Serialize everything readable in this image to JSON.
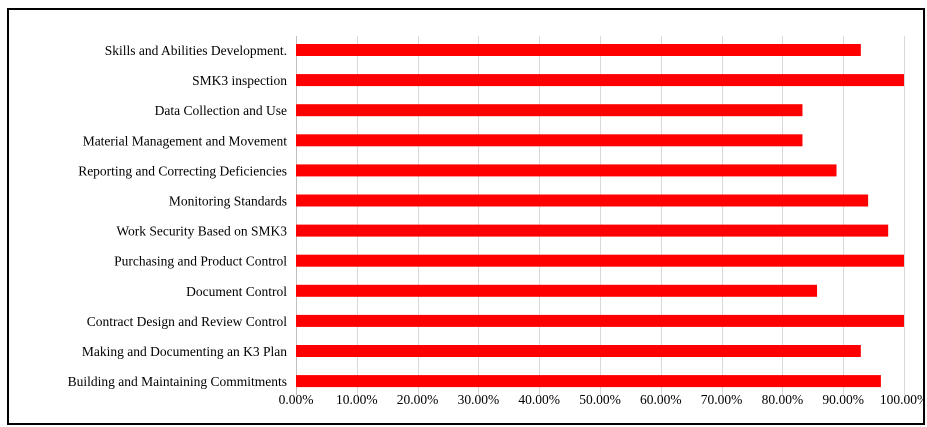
{
  "chart_data": {
    "type": "bar",
    "orientation": "horizontal",
    "categories": [
      "Skills and Abilities Development.",
      "SMK3 inspection",
      "Data Collection and Use",
      "Material Management and Movement",
      "Reporting and Correcting Deficiencies",
      "Monitoring Standards",
      "Work Security Based on SMK3",
      "Purchasing and Product Control",
      "Document Control",
      "Contract Design and Review Control",
      "Making and Documenting an K3 Plan",
      "Building and Maintaining Commitments"
    ],
    "values": [
      0.929,
      1.0,
      0.833,
      0.833,
      0.889,
      0.941,
      0.974,
      1.0,
      0.857,
      1.0,
      0.929,
      0.962
    ],
    "xlim": [
      0,
      1
    ],
    "x_ticks": [
      0,
      0.1,
      0.2,
      0.3,
      0.4,
      0.5,
      0.6,
      0.7,
      0.8,
      0.9,
      1.0
    ],
    "x_tick_labels": [
      "0.00%",
      "10.00%",
      "20.00%",
      "30.00%",
      "40.00%",
      "50.00%",
      "60.00%",
      "70.00%",
      "80.00%",
      "90.00%",
      "100.00%"
    ],
    "bar_color": "#ff0000",
    "grid": true,
    "legend": "none",
    "title": "",
    "xlabel": "",
    "ylabel": ""
  }
}
